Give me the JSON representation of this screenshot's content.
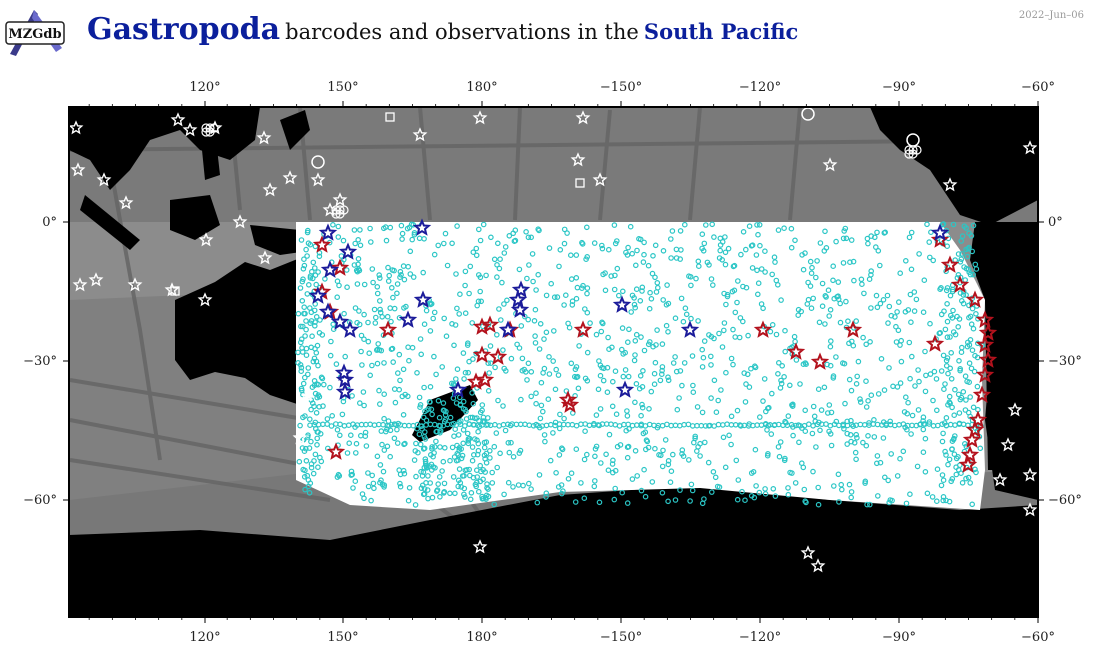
{
  "title": {
    "taxon": "Gastropoda",
    "middle": "barcodes and observations in the",
    "region": "South Pacific"
  },
  "date": "2022–Jun–06",
  "logo_text": "MZGdb",
  "axes": {
    "lon_ticks": [
      "120°",
      "150°",
      "180°",
      "−150°",
      "−120°",
      "−90°",
      "−60°"
    ],
    "lat_ticks": [
      "0°",
      "−30°",
      "−60°"
    ]
  },
  "colors": {
    "ocean_gray": "#8c8c8c",
    "dark_gray_tracks": "#6a6a6a",
    "land": "#000000",
    "region_highlight": "#ffffff",
    "observation_points": "#2bc6c6",
    "barcode_star": "#b3121d",
    "sequence_star": "#1b1b9a",
    "outside_markers": "#ffffff"
  }
}
